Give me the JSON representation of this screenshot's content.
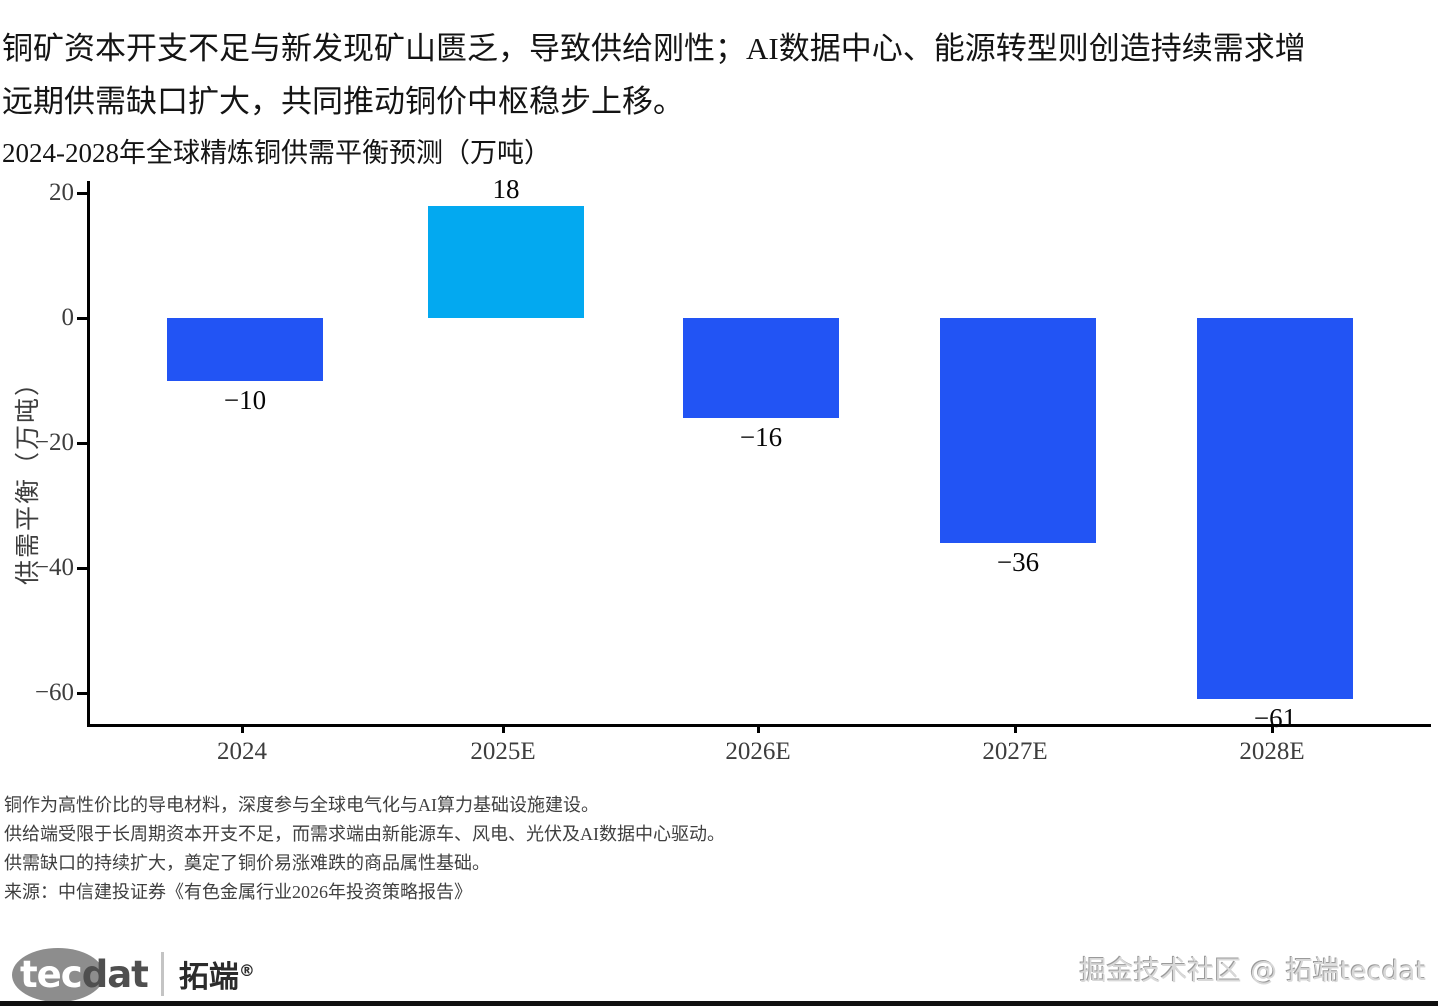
{
  "header": {
    "line1": "铜矿资本开支不足与新发现矿山匮乏，导致供给刚性；AI数据中心、能源转型则创造持续需求增",
    "line2": "远期供需缺口扩大，共同推动铜价中枢稳步上移。"
  },
  "chart_data": {
    "type": "bar",
    "title": "2024-2028年全球精炼铜供需平衡预测（万吨）",
    "categories": [
      "2024",
      "2025E",
      "2026E",
      "2027E",
      "2028E"
    ],
    "values": [
      -10,
      18,
      -16,
      -36,
      -61
    ],
    "bar_labels": [
      "−10",
      "18",
      "−16",
      "−36",
      "−61"
    ],
    "xlabel": "",
    "ylabel": "供需平衡（万吨）",
    "yticks": [
      20,
      0,
      -20,
      -40,
      -60
    ],
    "ylim": [
      -65,
      22
    ],
    "grid": false,
    "legend_position": "none",
    "colors": {
      "positive_bar": "#03A9F0",
      "negative_bar": "#2254F4",
      "axis": "#000000",
      "tick_text": "#3d3d3d",
      "value_text": "#060606"
    }
  },
  "notes": [
    "铜作为高性价比的导电材料，深度参与全球电气化与AI算力基础设施建设。",
    "供给端受限于长周期资本开支不足，而需求端由新能源车、风电、光伏及AI数据中心驱动。",
    "供需缺口的持续扩大，奠定了铜价易涨难跌的商品属性基础。",
    "来源：中信建投证券《有色金属行业2026年投资策略报告》"
  ],
  "footer": {
    "logo_tec": "tec",
    "logo_dat": "dat",
    "logo_brand": "拓端",
    "logo_reg": "®",
    "watermark": "掘金技术社区 @ 拓端tecdat"
  }
}
